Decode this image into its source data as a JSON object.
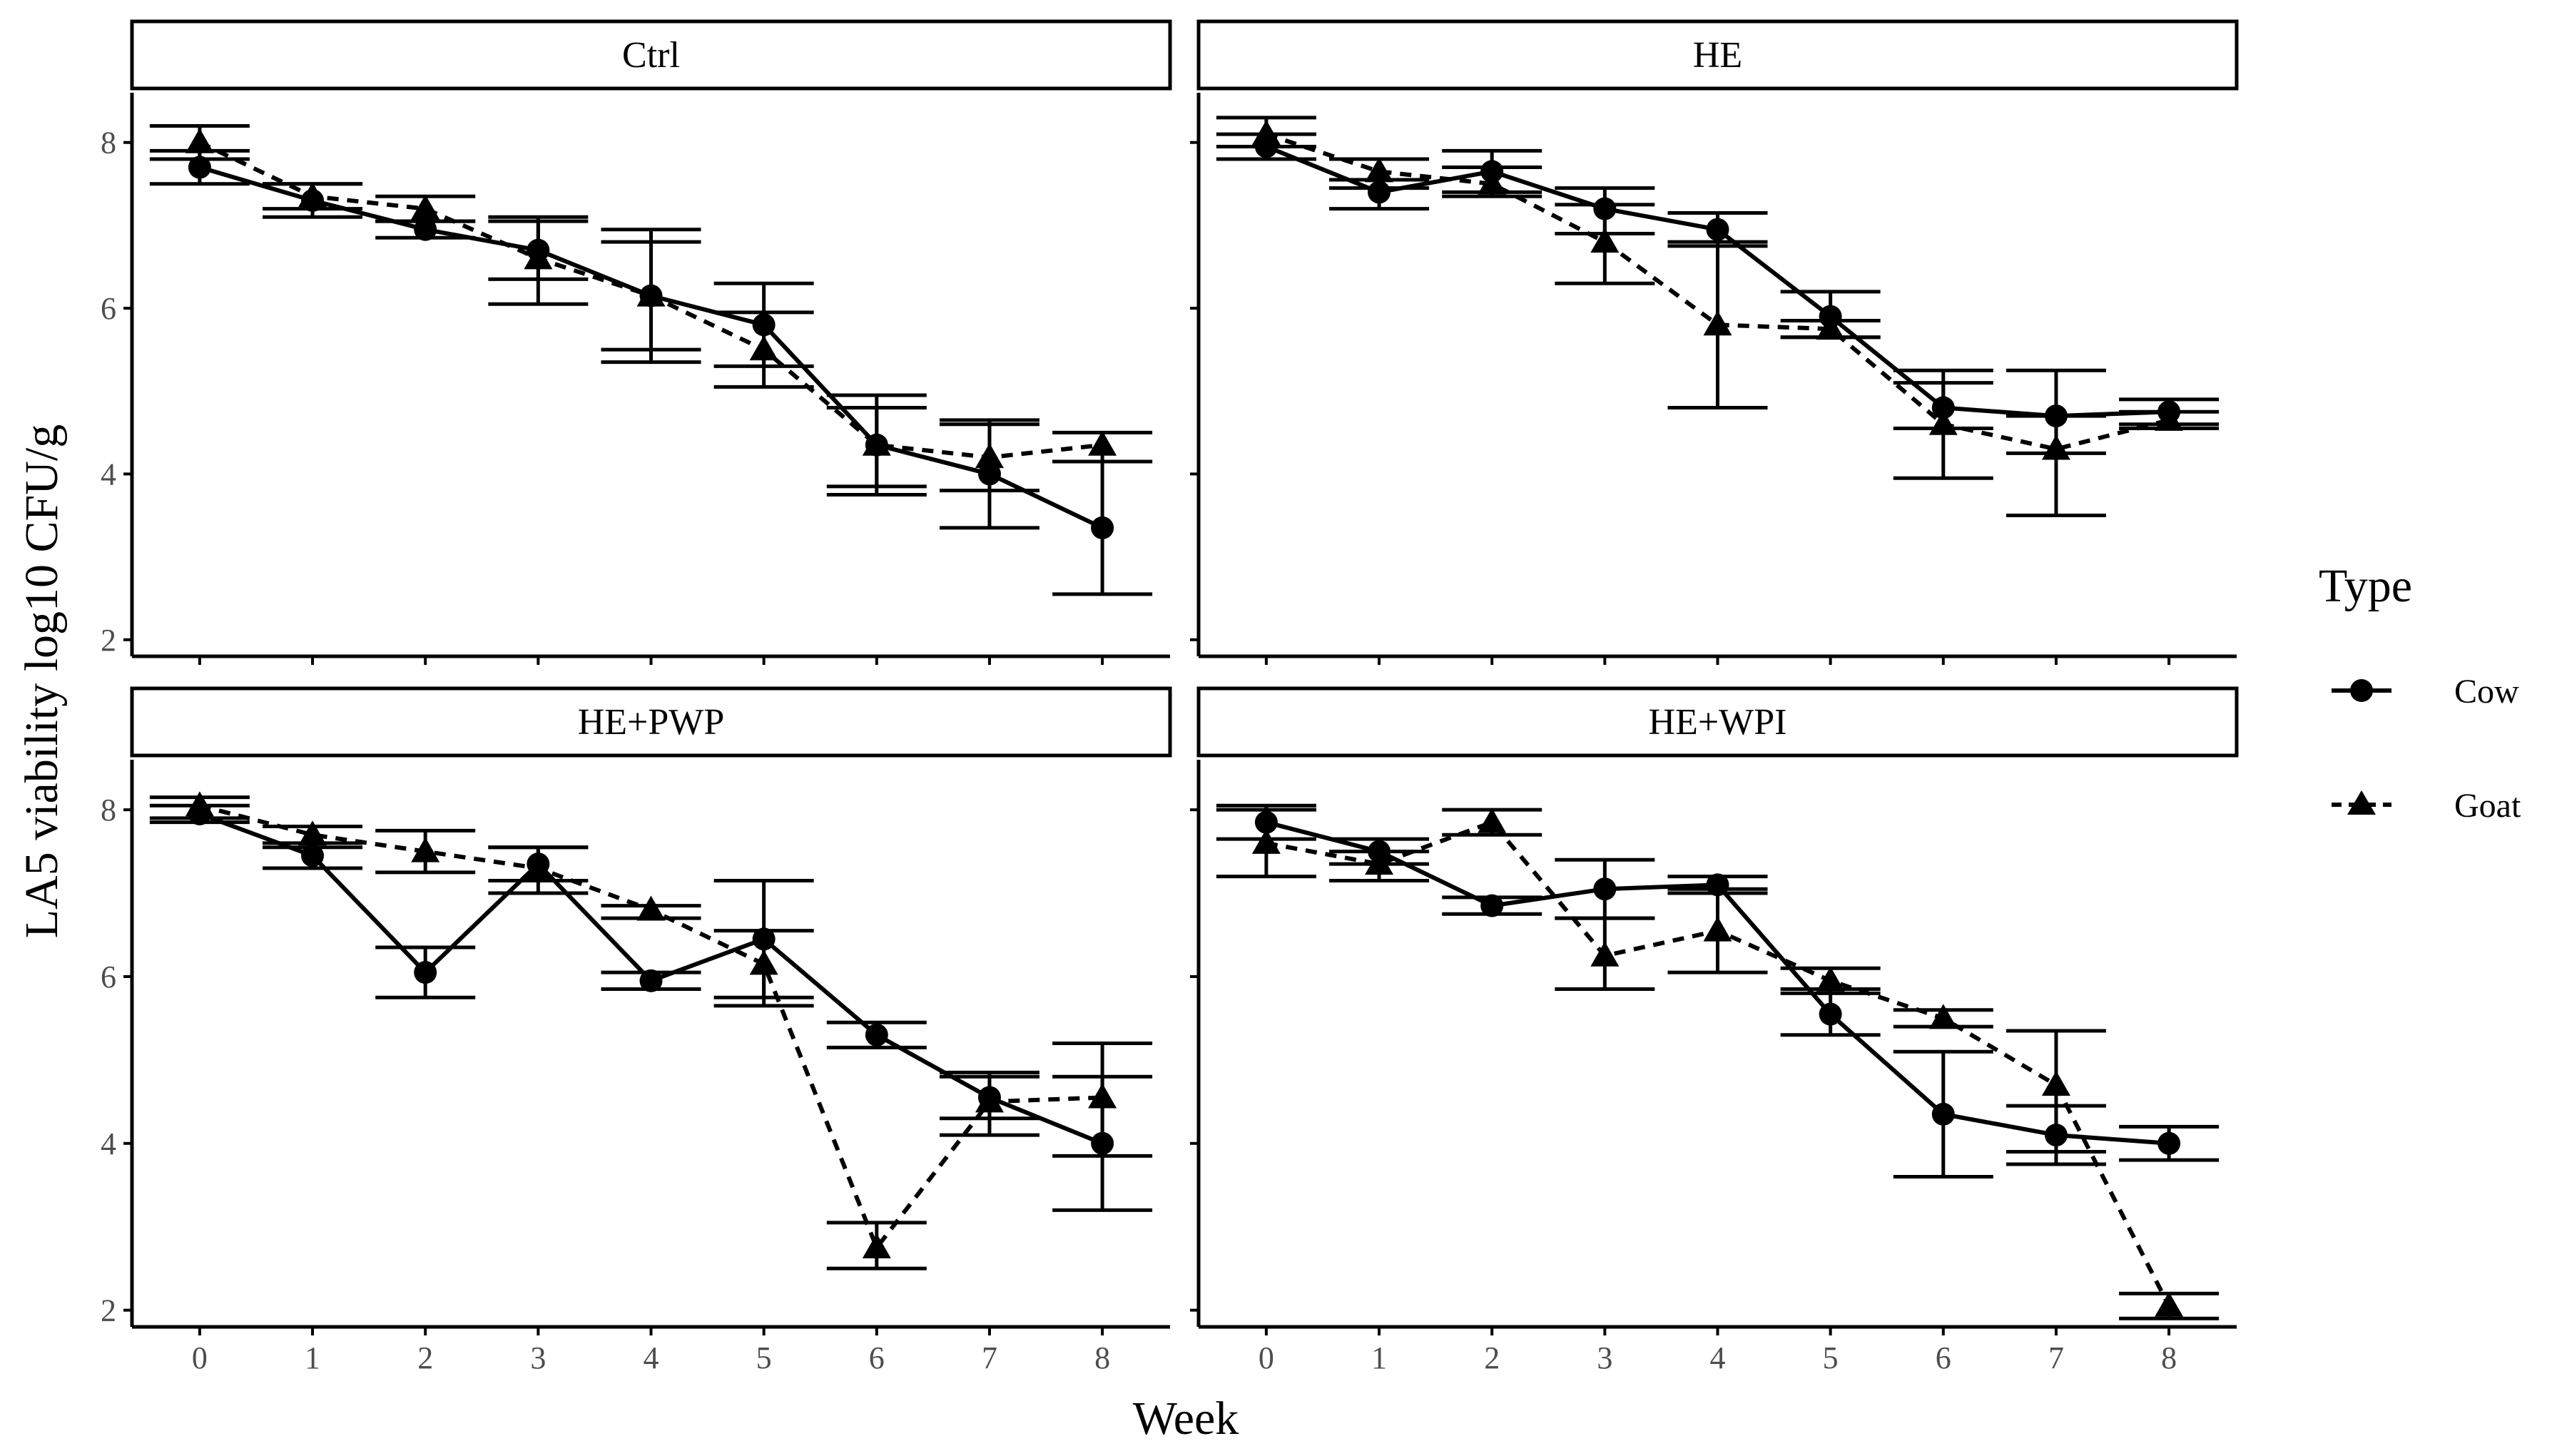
{
  "colors": {
    "ink": "#000000",
    "tick_text": "#4d4d4d",
    "background": "#ffffff"
  },
  "legend": {
    "title": "Type",
    "entries": [
      {
        "label": "Cow",
        "line": "solid",
        "marker": "circle"
      },
      {
        "label": "Goat",
        "line": "dashed",
        "marker": "triangle"
      }
    ]
  },
  "chart_data": {
    "type": "line",
    "xlabel": "Week",
    "ylabel": "LA5 viability log10 CFU/g",
    "x": [
      0,
      1,
      2,
      3,
      4,
      5,
      6,
      7,
      8
    ],
    "x_ticks": [
      "0",
      "1",
      "2",
      "3",
      "4",
      "5",
      "6",
      "7",
      "8"
    ],
    "y_ticks": [
      "2",
      "4",
      "6",
      "8"
    ],
    "xlim": [
      -0.6,
      8.6
    ],
    "ylim": [
      1.8,
      8.6
    ],
    "grid": false,
    "legend_position": "right",
    "panels": [
      {
        "title": "Ctrl",
        "series": [
          {
            "name": "Cow",
            "y": [
              7.7,
              7.3,
              6.95,
              6.7,
              6.15,
              5.8,
              4.35,
              4.0,
              3.35
            ],
            "err": [
              [
                7.5,
                7.9
              ],
              [
                7.1,
                7.5
              ],
              [
                6.85,
                7.05
              ],
              [
                6.35,
                7.05
              ],
              [
                5.35,
                6.95
              ],
              [
                5.3,
                6.3
              ],
              [
                3.75,
                4.95
              ],
              [
                3.35,
                4.65
              ],
              [
                2.55,
                4.15
              ]
            ]
          },
          {
            "name": "Goat",
            "y": [
              8.0,
              7.35,
              7.2,
              6.6,
              6.15,
              5.5,
              4.35,
              4.2,
              4.35
            ],
            "err": [
              [
                7.8,
                8.2
              ],
              [
                7.2,
                7.5
              ],
              [
                7.05,
                7.35
              ],
              [
                6.05,
                7.1
              ],
              [
                5.5,
                6.8
              ],
              [
                5.05,
                5.95
              ],
              [
                3.85,
                4.8
              ],
              [
                3.8,
                4.6
              ],
              [
                4.15,
                4.5
              ]
            ]
          }
        ]
      },
      {
        "title": "HE",
        "series": [
          {
            "name": "Cow",
            "y": [
              7.95,
              7.4,
              7.65,
              7.2,
              6.95,
              5.9,
              4.8,
              4.7,
              4.75
            ],
            "err": [
              [
                7.8,
                8.1
              ],
              [
                7.2,
                7.55
              ],
              [
                7.4,
                7.9
              ],
              [
                6.9,
                7.45
              ],
              [
                6.75,
                7.15
              ],
              [
                5.65,
                6.2
              ],
              [
                4.55,
                5.25
              ],
              [
                4.25,
                5.25
              ],
              [
                4.6,
                4.9
              ]
            ]
          },
          {
            "name": "Goat",
            "y": [
              8.1,
              7.65,
              7.5,
              6.8,
              5.8,
              5.75,
              4.6,
              4.3,
              4.65
            ],
            "err": [
              [
                7.95,
                8.3
              ],
              [
                7.45,
                7.8
              ],
              [
                7.35,
                7.7
              ],
              [
                6.3,
                7.25
              ],
              [
                4.8,
                6.8
              ],
              [
                5.65,
                5.85
              ],
              [
                3.95,
                5.1
              ],
              [
                3.5,
                4.7
              ],
              [
                4.55,
                4.75
              ]
            ]
          }
        ]
      },
      {
        "title": "HE+PWP",
        "series": [
          {
            "name": "Cow",
            "y": [
              7.95,
              7.45,
              6.05,
              7.35,
              5.95,
              6.45,
              5.3,
              4.55,
              4.0
            ],
            "err": [
              [
                7.85,
                8.05
              ],
              [
                7.3,
                7.6
              ],
              [
                5.75,
                6.35
              ],
              [
                7.15,
                7.55
              ],
              [
                5.85,
                6.05
              ],
              [
                5.75,
                7.15
              ],
              [
                5.15,
                5.45
              ],
              [
                4.3,
                4.8
              ],
              [
                3.2,
                4.8
              ]
            ]
          },
          {
            "name": "Goat",
            "y": [
              8.05,
              7.7,
              7.5,
              7.3,
              6.8,
              6.15,
              2.75,
              4.5,
              4.55
            ],
            "err": [
              [
                7.9,
                8.15
              ],
              [
                7.55,
                7.8
              ],
              [
                7.25,
                7.75
              ],
              [
                7.0,
                7.55
              ],
              [
                6.7,
                6.85
              ],
              [
                5.65,
                6.55
              ],
              [
                2.5,
                3.05
              ],
              [
                4.1,
                4.85
              ],
              [
                3.85,
                5.2
              ]
            ]
          }
        ]
      },
      {
        "title": "HE+WPI",
        "series": [
          {
            "name": "Cow",
            "y": [
              7.85,
              7.5,
              6.85,
              7.05,
              7.1,
              5.55,
              4.35,
              4.1,
              4.0
            ],
            "err": [
              [
                7.65,
                8.05
              ],
              [
                7.35,
                7.65
              ],
              [
                6.75,
                6.95
              ],
              [
                6.7,
                7.4
              ],
              [
                7.0,
                7.2
              ],
              [
                5.3,
                5.85
              ],
              [
                3.6,
                5.1
              ],
              [
                3.75,
                4.45
              ],
              [
                3.8,
                4.2
              ]
            ]
          },
          {
            "name": "Goat",
            "y": [
              7.6,
              7.35,
              7.85,
              6.25,
              6.55,
              5.95,
              5.5,
              4.7,
              2.05
            ],
            "err": [
              [
                7.2,
                8.0
              ],
              [
                7.15,
                7.5
              ],
              [
                7.7,
                8.0
              ],
              [
                5.85,
                6.7
              ],
              [
                6.05,
                7.05
              ],
              [
                5.8,
                6.1
              ],
              [
                5.4,
                5.6
              ],
              [
                3.9,
                5.35
              ],
              [
                1.9,
                2.2
              ]
            ]
          }
        ]
      }
    ]
  }
}
